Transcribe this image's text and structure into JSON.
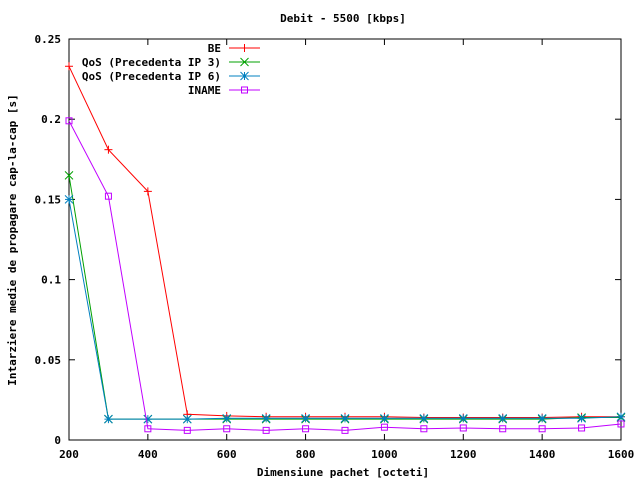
{
  "chart_data": {
    "type": "line",
    "title": "Debit - 5500 [kbps]",
    "xlabel": "Dimensiune pachet [octeti]",
    "ylabel": "Intarziere medie de propagare cap-la-cap [s]",
    "xlim": [
      200,
      1600
    ],
    "ylim": [
      0,
      0.25
    ],
    "x_ticks": [
      "200",
      "400",
      "600",
      "800",
      "1000",
      "1200",
      "1400",
      "1600"
    ],
    "y_ticks": [
      "0",
      "0.05",
      "0.1",
      "0.15",
      "0.2",
      "0.25"
    ],
    "grid": false,
    "legend_position": "top-right",
    "x": [
      200,
      300,
      400,
      500,
      600,
      700,
      800,
      900,
      1000,
      1100,
      1200,
      1300,
      1400,
      1500,
      1600
    ],
    "series": [
      {
        "name": "BE",
        "color": "#ff0000",
        "marker": "plus",
        "values": [
          0.233,
          0.181,
          0.155,
          0.016,
          0.015,
          0.0145,
          0.0145,
          0.0145,
          0.0145,
          0.014,
          0.014,
          0.014,
          0.014,
          0.0145,
          0.0145
        ]
      },
      {
        "name": "QoS (Precedenta IP 3)",
        "color": "#00a000",
        "marker": "cross",
        "values": [
          0.165,
          0.013,
          0.013,
          0.013,
          0.013,
          0.013,
          0.013,
          0.013,
          0.013,
          0.013,
          0.013,
          0.013,
          0.013,
          0.014,
          0.014
        ]
      },
      {
        "name": "QoS (Precedenta IP 6)",
        "color": "#0080c0",
        "marker": "star",
        "values": [
          0.15,
          0.013,
          0.013,
          0.013,
          0.0135,
          0.0135,
          0.0135,
          0.0135,
          0.0135,
          0.0135,
          0.0135,
          0.0135,
          0.0135,
          0.0135,
          0.0145
        ]
      },
      {
        "name": "INAME",
        "color": "#c000ff",
        "marker": "square",
        "values": [
          0.199,
          0.152,
          0.007,
          0.006,
          0.007,
          0.006,
          0.007,
          0.006,
          0.008,
          0.007,
          0.0075,
          0.007,
          0.007,
          0.0075,
          0.01
        ]
      }
    ]
  }
}
